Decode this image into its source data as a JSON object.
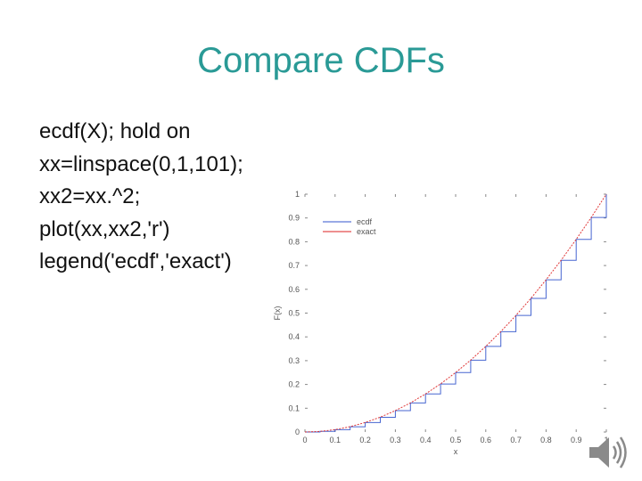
{
  "slide": {
    "title": "Compare CDFs",
    "code_lines": [
      "ecdf(X); hold on",
      "xx=linspace(0,1,101);",
      "xx2=xx.^2;",
      "plot(xx,xx2,'r')",
      "legend('ecdf','exact')"
    ]
  },
  "chart_data": {
    "type": "line",
    "xlabel": "x",
    "ylabel": "F(x)",
    "xlim": [
      0,
      1
    ],
    "ylim": [
      0,
      1
    ],
    "x_ticks": [
      "0",
      "0.1",
      "0.2",
      "0.3",
      "0.4",
      "0.5",
      "0.6",
      "0.7",
      "0.8",
      "0.9",
      "1"
    ],
    "y_ticks": [
      "0",
      "0.1",
      "0.2",
      "0.3",
      "0.4",
      "0.5",
      "0.6",
      "0.7",
      "0.8",
      "0.9",
      "1"
    ],
    "legend": {
      "position": "top-left",
      "entries": [
        "ecdf",
        "exact"
      ]
    },
    "series": [
      {
        "name": "ecdf",
        "color": "#3355cc",
        "style": "stairs",
        "x": [
          0,
          0.05,
          0.1,
          0.15,
          0.2,
          0.25,
          0.3,
          0.35,
          0.4,
          0.45,
          0.5,
          0.55,
          0.6,
          0.65,
          0.7,
          0.75,
          0.8,
          0.85,
          0.9,
          0.95,
          1
        ],
        "y": [
          0,
          0.003,
          0.01,
          0.022,
          0.04,
          0.062,
          0.09,
          0.122,
          0.16,
          0.202,
          0.25,
          0.302,
          0.36,
          0.422,
          0.49,
          0.562,
          0.64,
          0.722,
          0.81,
          0.902,
          1
        ]
      },
      {
        "name": "exact",
        "color": "#dd2222",
        "style": "line",
        "x": [
          0,
          0.05,
          0.1,
          0.15,
          0.2,
          0.25,
          0.3,
          0.35,
          0.4,
          0.45,
          0.5,
          0.55,
          0.6,
          0.65,
          0.7,
          0.75,
          0.8,
          0.85,
          0.9,
          0.95,
          1
        ],
        "y": [
          0,
          0.0025,
          0.01,
          0.0225,
          0.04,
          0.0625,
          0.09,
          0.1225,
          0.16,
          0.2025,
          0.25,
          0.3025,
          0.36,
          0.4225,
          0.49,
          0.5625,
          0.64,
          0.7225,
          0.81,
          0.9025,
          1
        ]
      }
    ]
  },
  "icons": {
    "speaker": "speaker-icon"
  }
}
